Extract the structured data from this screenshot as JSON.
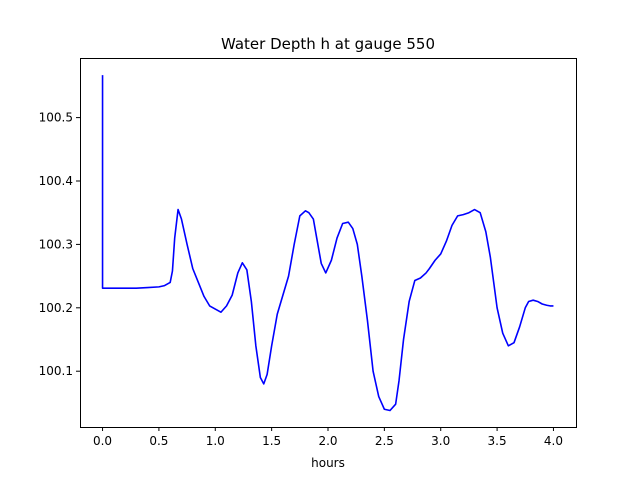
{
  "chart_data": {
    "type": "line",
    "title": "Water Depth h at gauge 550",
    "xlabel": "hours",
    "ylabel": "",
    "xlim": [
      -0.2,
      4.2
    ],
    "ylim": [
      100.012,
      100.594
    ],
    "xticks": [
      0.0,
      0.5,
      1.0,
      1.5,
      2.0,
      2.5,
      3.0,
      3.5,
      4.0
    ],
    "xtick_labels": [
      "0.0",
      "0.5",
      "1.0",
      "1.5",
      "2.0",
      "2.5",
      "3.0",
      "3.5",
      "4.0"
    ],
    "yticks": [
      100.1,
      100.2,
      100.3,
      100.4,
      100.5
    ],
    "ytick_labels": [
      "100.1",
      "100.2",
      "100.3",
      "100.4",
      "100.5"
    ],
    "grid": false,
    "series": [
      {
        "color": "#0000ff",
        "x": [
          0.0,
          0.0,
          0.0,
          0.1,
          0.2,
          0.3,
          0.4,
          0.5,
          0.55,
          0.6,
          0.62,
          0.64,
          0.67,
          0.7,
          0.75,
          0.8,
          0.85,
          0.9,
          0.95,
          1.0,
          1.05,
          1.1,
          1.15,
          1.2,
          1.24,
          1.28,
          1.32,
          1.36,
          1.4,
          1.43,
          1.46,
          1.5,
          1.55,
          1.6,
          1.65,
          1.7,
          1.75,
          1.8,
          1.83,
          1.87,
          1.9,
          1.94,
          1.98,
          2.03,
          2.08,
          2.13,
          2.18,
          2.22,
          2.26,
          2.3,
          2.35,
          2.4,
          2.45,
          2.5,
          2.55,
          2.6,
          2.63,
          2.67,
          2.72,
          2.77,
          2.82,
          2.87,
          2.9,
          2.95,
          3.0,
          3.05,
          3.1,
          3.15,
          3.2,
          3.25,
          3.3,
          3.35,
          3.4,
          3.44,
          3.47,
          3.5,
          3.55,
          3.6,
          3.65,
          3.7,
          3.75,
          3.78,
          3.82,
          3.86,
          3.9,
          3.94,
          3.97,
          4.0
        ],
        "y": [
          100.567,
          100.555,
          100.231,
          100.231,
          100.231,
          100.231,
          100.232,
          100.233,
          100.235,
          100.24,
          100.258,
          100.31,
          100.355,
          100.34,
          100.3,
          100.262,
          100.24,
          100.218,
          100.203,
          100.198,
          100.193,
          100.203,
          100.22,
          100.255,
          100.271,
          100.26,
          100.21,
          100.14,
          100.09,
          100.08,
          100.095,
          100.14,
          100.19,
          100.22,
          100.25,
          100.3,
          100.345,
          100.353,
          100.35,
          100.34,
          100.31,
          100.27,
          100.255,
          100.275,
          100.31,
          100.333,
          100.335,
          100.325,
          100.3,
          100.25,
          100.18,
          100.1,
          100.06,
          100.04,
          100.038,
          100.048,
          100.085,
          100.15,
          100.21,
          100.243,
          100.247,
          100.255,
          100.262,
          100.275,
          100.285,
          100.305,
          100.33,
          100.345,
          100.347,
          100.35,
          100.355,
          100.35,
          100.32,
          100.28,
          100.24,
          100.2,
          100.16,
          100.14,
          100.145,
          100.17,
          100.2,
          100.21,
          100.212,
          100.21,
          100.206,
          100.204,
          100.203,
          100.203
        ]
      }
    ]
  }
}
